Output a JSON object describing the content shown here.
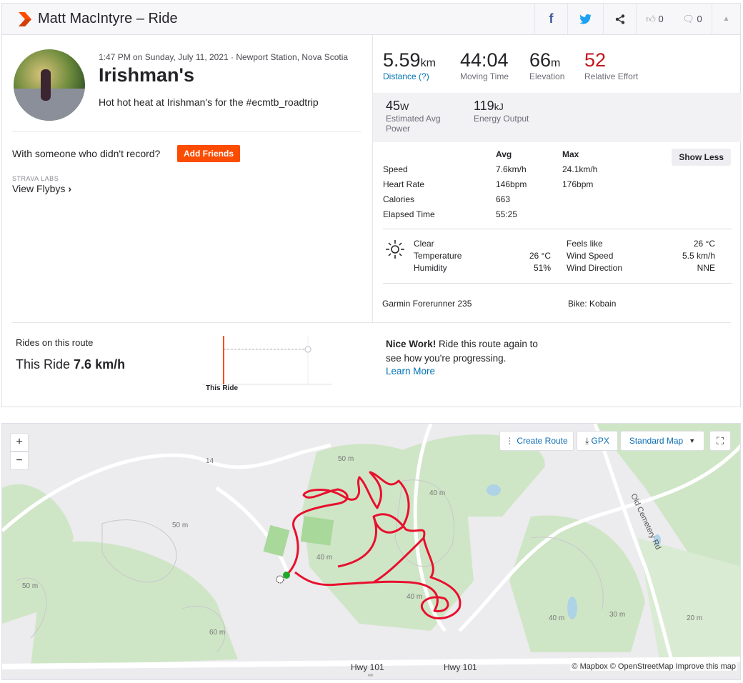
{
  "header": {
    "title": "Matt MacIntyre – Ride",
    "kudos_count": "0",
    "comments_count": "0"
  },
  "activity": {
    "meta": "1:47 PM on Sunday, July 11, 2021 · Newport Station, Nova Scotia",
    "name": "Irishman's",
    "description": "Hot hot heat at Irishman's for the #ecmtb_roadtrip",
    "with_text": "With someone who didn't record?",
    "add_friends": "Add Friends",
    "labs_label": "STRAVA LABS",
    "flybys": "View Flybys"
  },
  "stats": {
    "primary": [
      {
        "value": "5.59",
        "unit": "km",
        "label": "Distance (?)"
      },
      {
        "value": "44:04",
        "unit": "",
        "label": "Moving Time"
      },
      {
        "value": "66",
        "unit": "m",
        "label": "Elevation"
      },
      {
        "value": "52",
        "unit": "",
        "label": "Relative Effort"
      }
    ],
    "secondary": [
      {
        "value": "45",
        "unit": "W",
        "label": "Estimated Avg Power"
      },
      {
        "value": "119",
        "unit": "kJ",
        "label": "Energy Output"
      }
    ],
    "relative_effort_color": "#c4161c"
  },
  "details": {
    "col_avg": "Avg",
    "col_max": "Max",
    "show_less": "Show Less",
    "rows": [
      {
        "label": "Speed",
        "avg": "7.6km/h",
        "max": "24.1km/h"
      },
      {
        "label": "Heart Rate",
        "avg": "146bpm",
        "max": "176bpm"
      },
      {
        "label": "Calories",
        "avg": "663",
        "max": ""
      },
      {
        "label": "Elapsed Time",
        "avg": "55:25",
        "max": ""
      }
    ]
  },
  "weather": {
    "condition": "Clear",
    "temperature_label": "Temperature",
    "temperature": "26 °C",
    "humidity_label": "Humidity",
    "humidity": "51%",
    "feels_label": "Feels like",
    "feels": "26 °C",
    "wind_speed_label": "Wind Speed",
    "wind_speed": "5.5 km/h",
    "wind_dir_label": "Wind Direction",
    "wind_dir": "NNE"
  },
  "gear": {
    "device": "Garmin Forerunner 235",
    "bike": "Bike: Kobain"
  },
  "route": {
    "title": "Rides on this route",
    "this_ride_prefix": "This Ride",
    "this_ride_value": "7.6 km/h",
    "chart_label": "This Ride",
    "nice_bold": "Nice Work!",
    "nice_text": " Ride this route again to see how you're progressing.",
    "learn_more": "Learn More"
  },
  "map": {
    "zoom_in": "+",
    "zoom_out": "−",
    "create_route": "Create Route",
    "gpx": "GPX",
    "map_type": "Standard Map",
    "attribution": "© Mapbox © OpenStreetMap Improve this map",
    "labels": {
      "road14": "14",
      "hwy1": "Hwy 101",
      "hwy2": "Hwy 101",
      "cemetery": "Old Cemetery Rd",
      "c50a": "50 m",
      "c50b": "50 m",
      "c40a": "40 m",
      "c40b": "40 m",
      "c40c": "40 m",
      "c40d": "40 m",
      "c60": "60 m",
      "c30": "30 m",
      "c20": "20 m",
      "c50c": "50 m"
    }
  },
  "colors": {
    "brand": "#fc4c02",
    "link": "#0073b5",
    "route": "#e8102e"
  }
}
